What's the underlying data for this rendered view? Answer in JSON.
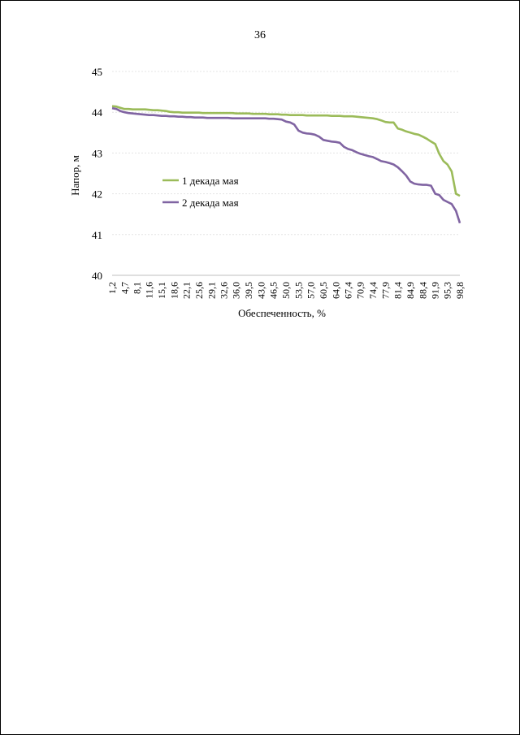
{
  "page": {
    "number": "36"
  },
  "chart_data": {
    "type": "line",
    "title": "",
    "xlabel": "Обеспеченность, %",
    "ylabel": "Напор, м",
    "ylim": [
      40,
      45
    ],
    "yticks": [
      "40",
      "41",
      "42",
      "43",
      "44",
      "45"
    ],
    "x": [
      1.2,
      2.4,
      3.5,
      4.7,
      5.8,
      7.0,
      8.1,
      9.3,
      10.5,
      11.6,
      12.8,
      14.0,
      15.1,
      16.3,
      17.4,
      18.6,
      19.8,
      20.9,
      22.1,
      23.3,
      24.4,
      25.6,
      26.7,
      27.9,
      29.1,
      30.2,
      31.4,
      32.6,
      33.7,
      34.9,
      36.0,
      37.2,
      38.4,
      39.5,
      40.7,
      41.9,
      43.0,
      44.2,
      45.3,
      46.5,
      47.7,
      48.8,
      50.0,
      51.2,
      52.3,
      53.5,
      54.7,
      55.8,
      57.0,
      58.1,
      59.3,
      60.5,
      61.6,
      62.8,
      64.0,
      65.1,
      66.3,
      67.4,
      68.6,
      69.8,
      70.9,
      72.1,
      73.3,
      74.4,
      75.6,
      76.7,
      77.9,
      79.1,
      80.2,
      81.4,
      82.6,
      83.7,
      84.9,
      86.0,
      87.2,
      88.4,
      89.5,
      90.7,
      91.9,
      93.0,
      94.2,
      95.3,
      96.5,
      97.7,
      98.8
    ],
    "xtick_labels": [
      "1,2",
      "4,7",
      "8,1",
      "11,6",
      "15,1",
      "18,6",
      "22,1",
      "25,6",
      "29,1",
      "32,6",
      "36,0",
      "39,5",
      "43,0",
      "46,5",
      "50,0",
      "53,5",
      "57,0",
      "60,5",
      "64,0",
      "67,4",
      "70,9",
      "74,4",
      "77,9",
      "81,4",
      "84,9",
      "88,4",
      "91,9",
      "95,3",
      "98,8"
    ],
    "grid": true,
    "legend_position": "left-middle",
    "series": [
      {
        "name": "1 декада мая",
        "color": "#9bbb59",
        "values": [
          44.15,
          44.14,
          44.11,
          44.08,
          44.08,
          44.07,
          44.07,
          44.07,
          44.07,
          44.06,
          44.05,
          44.05,
          44.04,
          44.03,
          44.01,
          44.0,
          44.0,
          43.99,
          43.99,
          43.99,
          43.99,
          43.99,
          43.98,
          43.98,
          43.98,
          43.98,
          43.98,
          43.98,
          43.98,
          43.98,
          43.97,
          43.97,
          43.97,
          43.97,
          43.96,
          43.96,
          43.96,
          43.96,
          43.95,
          43.95,
          43.95,
          43.94,
          43.94,
          43.93,
          43.93,
          43.93,
          43.93,
          43.92,
          43.92,
          43.92,
          43.92,
          43.92,
          43.92,
          43.91,
          43.91,
          43.91,
          43.9,
          43.9,
          43.9,
          43.89,
          43.88,
          43.87,
          43.86,
          43.85,
          43.83,
          43.8,
          43.76,
          43.75,
          43.75,
          43.6,
          43.57,
          43.53,
          43.5,
          43.47,
          43.45,
          43.4,
          43.35,
          43.28,
          43.22,
          42.98,
          42.8,
          42.72,
          42.55,
          42.0,
          41.95
        ]
      },
      {
        "name": "2 декада мая",
        "color": "#8064a2",
        "values": [
          44.1,
          44.08,
          44.03,
          44.0,
          43.98,
          43.97,
          43.96,
          43.95,
          43.94,
          43.93,
          43.93,
          43.92,
          43.91,
          43.91,
          43.9,
          43.9,
          43.89,
          43.89,
          43.88,
          43.88,
          43.87,
          43.87,
          43.87,
          43.86,
          43.86,
          43.86,
          43.86,
          43.86,
          43.86,
          43.85,
          43.85,
          43.85,
          43.85,
          43.85,
          43.85,
          43.85,
          43.85,
          43.85,
          43.84,
          43.84,
          43.83,
          43.82,
          43.77,
          43.75,
          43.7,
          43.55,
          43.5,
          43.48,
          43.47,
          43.45,
          43.4,
          43.32,
          43.3,
          43.28,
          43.27,
          43.25,
          43.15,
          43.1,
          43.07,
          43.02,
          42.98,
          42.95,
          42.92,
          42.9,
          42.85,
          42.8,
          42.78,
          42.75,
          42.72,
          42.65,
          42.55,
          42.45,
          42.3,
          42.25,
          42.23,
          42.22,
          42.22,
          42.2,
          42.0,
          41.97,
          41.85,
          41.8,
          41.75,
          41.58,
          41.28
        ]
      }
    ]
  }
}
